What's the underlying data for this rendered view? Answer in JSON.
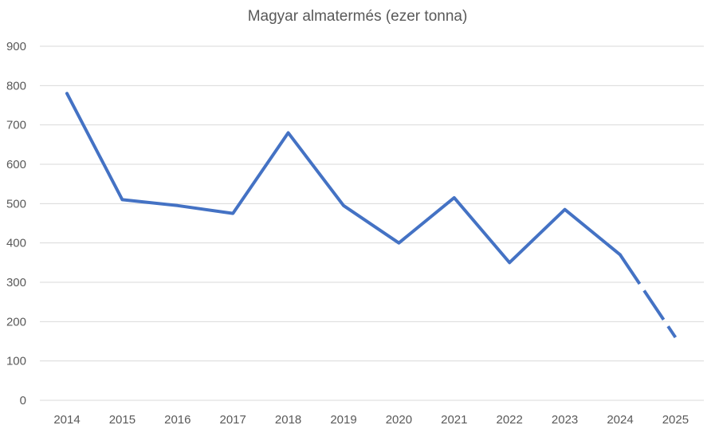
{
  "chart_data": {
    "type": "line",
    "title": "Magyar almatermés (ezer tonna)",
    "xlabel": "",
    "ylabel": "",
    "categories": [
      "2014",
      "2015",
      "2016",
      "2017",
      "2018",
      "2019",
      "2020",
      "2021",
      "2022",
      "2023",
      "2024",
      "2025"
    ],
    "series": [
      {
        "values": [
          780,
          510,
          495,
          475,
          680,
          495,
          400,
          515,
          350,
          485,
          370,
          160
        ],
        "color": "#4472c4",
        "dashed_last_segment": true
      }
    ],
    "ylim": [
      0,
      900
    ],
    "yticks": [
      0,
      100,
      200,
      300,
      400,
      500,
      600,
      700,
      800,
      900
    ],
    "grid": true,
    "legend": "none"
  }
}
